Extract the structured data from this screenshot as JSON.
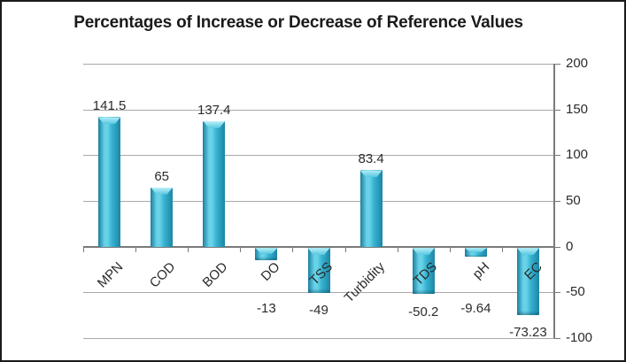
{
  "chart_data": {
    "type": "bar",
    "title": "Percentages of Increase or Decrease of Reference Values",
    "categories": [
      "MPN",
      "COD",
      "BOD",
      "DO",
      "TSS",
      "Turbidity",
      "TDS",
      "pH",
      "EC"
    ],
    "values": [
      141.5,
      65,
      137.4,
      -13,
      -49,
      83.4,
      -50.2,
      -9.64,
      -73.23
    ],
    "data_labels": [
      "141.5",
      "65",
      "137.4",
      "-13",
      "-49",
      "83.4",
      "-50.2",
      "-9.64",
      "-73.23"
    ],
    "xlabel": "",
    "ylabel": "",
    "ylim": [
      -100,
      200
    ],
    "y_ticks": [
      200,
      150,
      100,
      50,
      0,
      -50,
      -100
    ],
    "y_tick_labels": [
      "200",
      "150",
      "100",
      "50",
      "0",
      "-50",
      "-100"
    ],
    "y_axis_position": "right",
    "grid": true,
    "legend": false,
    "colors": {
      "bar_edge_left": "#1a7e9e",
      "bar_bright": "#67d2e8",
      "bar_mid": "#36b2d0",
      "bar_edge_right": "#1d85a6",
      "bar_cap_light": "#b9f0f8",
      "bar_cap_dark": "#57c8e0",
      "gridline": "#a8a8a8",
      "axis": "#7a7a7a",
      "label_text": "#2b2b2b",
      "title_text": "#1a1a1a",
      "background": "#ffffff",
      "frame_border": "#1a1a1a"
    }
  }
}
